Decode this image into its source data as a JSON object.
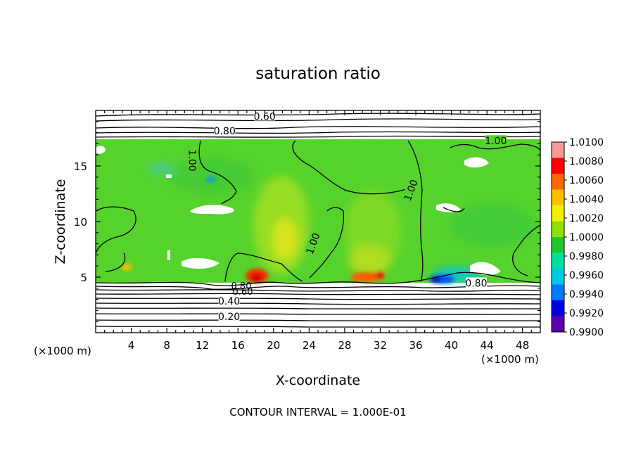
{
  "chart_data": {
    "type": "heatmap",
    "title": "saturation ratio",
    "xlabel": "X-coordinate",
    "ylabel": "Z-coordinate",
    "x_unit_left": "(×1000 m)",
    "x_unit_right": "(×1000 m)",
    "footer": "CONTOUR INTERVAL = 1.000E-01",
    "xlim": [
      0,
      50
    ],
    "ylim": [
      0,
      20
    ],
    "xticks": [
      "4",
      "8",
      "12",
      "16",
      "20",
      "24",
      "28",
      "32",
      "36",
      "40",
      "44",
      "48"
    ],
    "xtick_values": [
      4,
      8,
      12,
      16,
      20,
      24,
      28,
      32,
      36,
      40,
      44,
      48
    ],
    "yticks": [
      "5",
      "10",
      "15"
    ],
    "ytick_values": [
      5,
      10,
      15
    ],
    "colorbar": {
      "labels": [
        "1.0100",
        "1.0080",
        "1.0060",
        "1.0040",
        "1.0020",
        "1.0000",
        "0.9980",
        "0.9960",
        "0.9940",
        "0.9920",
        "0.9900"
      ],
      "colors": [
        "#f89a9a",
        "#ff0000",
        "#ff6a00",
        "#ffc000",
        "#f0f000",
        "#8ee000",
        "#20c830",
        "#00e0a0",
        "#00c8e8",
        "#0078ff",
        "#0000e0",
        "#5a00b0"
      ]
    },
    "contour_labels": [
      {
        "text": "0.60",
        "x": 19.0,
        "z": 19.4
      },
      {
        "text": "0.80",
        "x": 14.5,
        "z": 18.1
      },
      {
        "text": "1.00",
        "x": 45.0,
        "z": 17.2
      },
      {
        "text": "1.00",
        "x": 10.8,
        "z": 15.5
      },
      {
        "text": "1.00",
        "x": 35.5,
        "z": 12.8
      },
      {
        "text": "1.00",
        "x": 24.5,
        "z": 8.0
      },
      {
        "text": "0.80",
        "x": 42.8,
        "z": 4.4
      },
      {
        "text": "0.40",
        "x": 15.0,
        "z": 2.8
      },
      {
        "text": "0.20",
        "x": 15.0,
        "z": 1.4
      }
    ],
    "dense_contour_labels": [
      "0.80",
      "0.60"
    ]
  }
}
